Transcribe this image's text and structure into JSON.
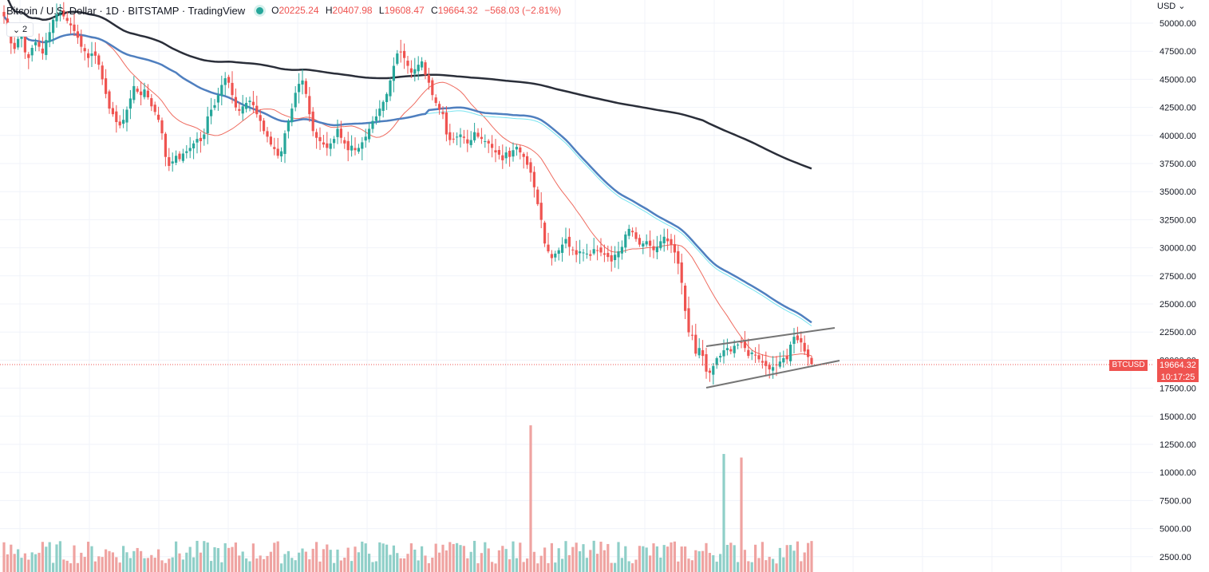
{
  "header": {
    "title": "Bitcoin / U.S. Dollar · 1D · BITSTAMP · TradingView",
    "ohlc": [
      {
        "k": "O",
        "v": "20225.24"
      },
      {
        "k": "H",
        "v": "20407.98"
      },
      {
        "k": "L",
        "v": "19608.47"
      },
      {
        "k": "C",
        "v": "19664.32"
      }
    ],
    "change": "−568.03 (−2.81%)"
  },
  "study_toggle": {
    "label": "2"
  },
  "currency": {
    "label": "USD"
  },
  "last_price": {
    "price": "19664.32",
    "countdown": "10:17:25",
    "symbol": "BTCUSD"
  },
  "colors": {
    "up": "#26a69a",
    "down": "#ef5350",
    "up_volume": "#8fcfc8",
    "down_volume": "#efa3a1",
    "ma_fast": "#ef6c60",
    "ma_mid": "#4f7fbf",
    "ma_cyan": "#78e4f0",
    "ma_slow": "#2a2e39",
    "trendline": "#757575"
  },
  "chart_data": {
    "type": "candlestick",
    "y_axis_ticks": [
      "50000.00",
      "47500.00",
      "45000.00",
      "42500.00",
      "40000.00",
      "37500.00",
      "35000.00",
      "32500.00",
      "30000.00",
      "27500.00",
      "25000.00",
      "22500.00",
      "20000.00",
      "17500.00",
      "15000.00",
      "12500.00",
      "10000.00",
      "7500.00",
      "5000.00",
      "2500.00"
    ],
    "price_range": [
      16500,
      51800
    ],
    "volume_range": [
      0,
      20000
    ],
    "close": [
      50600,
      49800,
      48200,
      47700,
      48600,
      49100,
      47400,
      46900,
      47800,
      48300,
      47900,
      47300,
      48500,
      49200,
      50300,
      50800,
      51000,
      50600,
      50200,
      49800,
      49300,
      48700,
      47900,
      47500,
      46900,
      47300,
      47100,
      46300,
      45000,
      43700,
      42400,
      41900,
      41200,
      40900,
      41400,
      42300,
      43300,
      44400,
      43900,
      43600,
      44100,
      43400,
      42600,
      42100,
      41400,
      40200,
      38100,
      37300,
      37700,
      38200,
      37900,
      38400,
      38600,
      38900,
      39300,
      39700,
      39500,
      40100,
      41700,
      42300,
      42700,
      43600,
      44500,
      45100,
      44700,
      43600,
      42500,
      42200,
      42600,
      42900,
      43100,
      42700,
      41900,
      41300,
      40400,
      39900,
      39200,
      38800,
      38200,
      38600,
      40200,
      41300,
      42400,
      43800,
      44600,
      44900,
      43700,
      41900,
      40400,
      39800,
      39500,
      39200,
      38900,
      39300,
      39700,
      40600,
      39800,
      39300,
      38700,
      39100,
      38700,
      38900,
      39400,
      39900,
      40600,
      41300,
      41700,
      42400,
      43000,
      43700,
      44900,
      46200,
      47300,
      47400,
      46900,
      46200,
      45600,
      45900,
      46300,
      46600,
      45400,
      44700,
      43600,
      42900,
      42300,
      41900,
      40100,
      39600,
      39700,
      39900,
      40100,
      39800,
      39300,
      39600,
      40300,
      39900,
      39700,
      39500,
      39300,
      38900,
      38500,
      38300,
      37800,
      38500,
      38100,
      38700,
      39000,
      38500,
      38100,
      37400,
      36700,
      35400,
      33900,
      32500,
      30400,
      29700,
      29100,
      29500,
      29800,
      30300,
      30800,
      30100,
      29800,
      29400,
      29700,
      29600,
      29500,
      29300,
      29900,
      29800,
      29600,
      29400,
      29200,
      28800,
      29400,
      29700,
      30100,
      31200,
      31700,
      31400,
      30800,
      30300,
      30400,
      30600,
      30200,
      29800,
      30100,
      30600,
      31000,
      30600,
      30300,
      29600,
      28600,
      26900,
      24400,
      22500,
      22200,
      20600,
      21100,
      20400,
      19000,
      18900,
      19500,
      20200,
      20400,
      20900,
      21100,
      20800,
      21300,
      21400,
      21600,
      21100,
      20400,
      20700,
      20500,
      20100,
      19800,
      19500,
      19200,
      19400,
      19600,
      19900,
      20200,
      20100,
      21400,
      22100,
      21800,
      21600,
      20800,
      20300,
      19664
    ]
  }
}
